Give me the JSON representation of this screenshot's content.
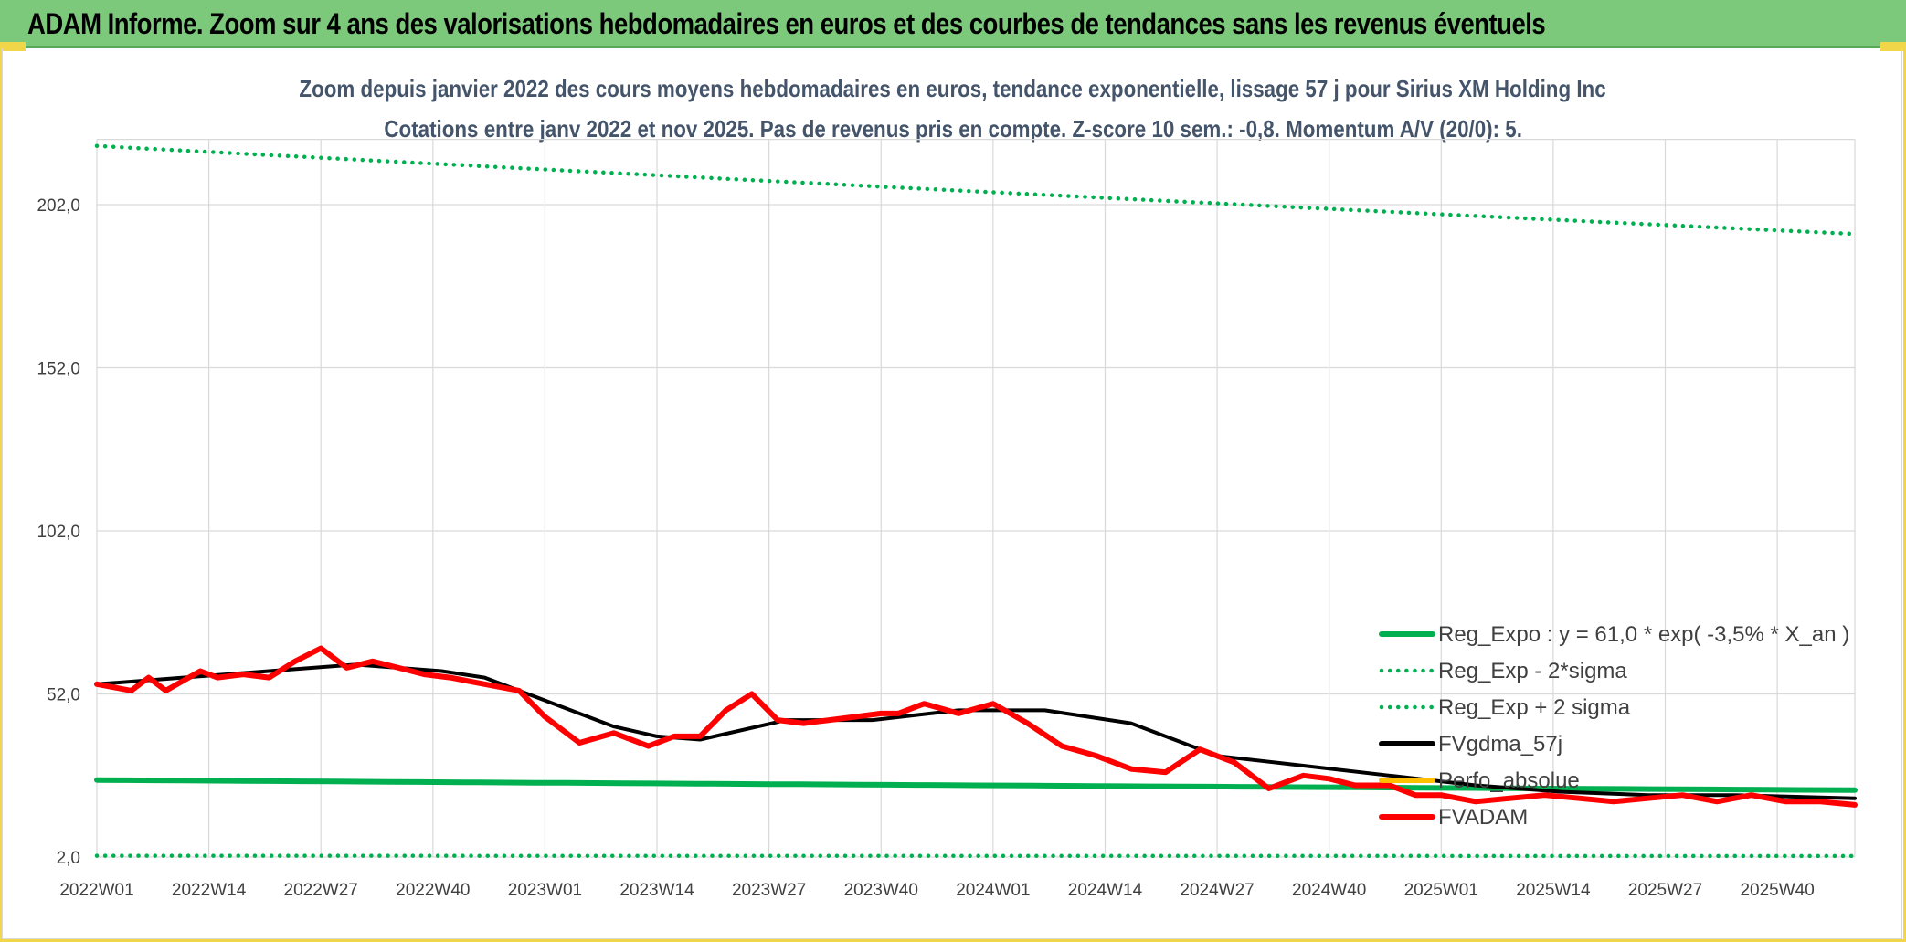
{
  "banner": {
    "title": "ADAM Informe. Zoom sur 4 ans des valorisations hebdomadaires en euros et des courbes de tendances sans les revenus éventuels"
  },
  "chart_data": {
    "type": "line",
    "title": "Zoom depuis janvier 2022 des cours moyens hebdomadaires en euros, tendance exponentielle, lissage 57 j pour Sirius XM Holding Inc",
    "subtitle": "Cotations entre janv 2022 et nov 2025. Pas de revenus pris en compte. Z-score 10 sem.: -0,8. Momentum A/V (20/0): 5.",
    "ylim": [
      2,
      222
    ],
    "yticks": [
      "2,0",
      "52,0",
      "102,0",
      "152,0",
      "202,0"
    ],
    "ytick_values": [
      2,
      52,
      102,
      152,
      202
    ],
    "xticks": [
      "2022W01",
      "2022W14",
      "2022W27",
      "2022W40",
      "2023W01",
      "2023W14",
      "2023W27",
      "2023W40",
      "2024W01",
      "2024W14",
      "2024W27",
      "2024W40",
      "2025W01",
      "2025W14",
      "2025W27",
      "2025W40"
    ],
    "n_weeks": 205,
    "legend": [
      {
        "label": "Reg_Expo : y = 61,0 * exp( -3,5% *  X_an )",
        "color": "#00b050",
        "style": "solid"
      },
      {
        "label": "Reg_Exp - 2*sigma",
        "color": "#00b050",
        "style": "dotted"
      },
      {
        "label": "Reg_Exp + 2 sigma",
        "color": "#00b050",
        "style": "dotted"
      },
      {
        "label": "FVgdma_57j",
        "color": "#000000",
        "style": "solid"
      },
      {
        "label": "Perfo_absolue",
        "color": "#ffc000",
        "style": "solid"
      },
      {
        "label": "FVADAM",
        "color": "#ff0000",
        "style": "solid"
      }
    ],
    "series": [
      {
        "name": "Reg_Expo",
        "color": "#00b050",
        "style": "solid",
        "x": [
          0,
          204
        ],
        "y": [
          25.6,
          22.5
        ]
      },
      {
        "name": "Reg_Exp - 2*sigma",
        "color": "#00b050",
        "style": "dotted",
        "x": [
          0,
          204
        ],
        "y": [
          2.4,
          2.3
        ]
      },
      {
        "name": "Reg_Exp + 2 sigma",
        "color": "#00b050",
        "style": "dotted",
        "x": [
          0,
          204
        ],
        "y": [
          220,
          193
        ]
      },
      {
        "name": "FVgdma_57j",
        "color": "#000000",
        "style": "solid",
        "x": [
          0,
          10,
          20,
          30,
          40,
          45,
          50,
          60,
          65,
          70,
          80,
          90,
          100,
          110,
          120,
          130,
          140,
          150,
          160,
          170,
          180,
          190,
          204
        ],
        "y": [
          55,
          57,
          59,
          61,
          59,
          57,
          52,
          42,
          39,
          38,
          44,
          44,
          47,
          47,
          43,
          33,
          30,
          27,
          24,
          22,
          21,
          21,
          20
        ]
      },
      {
        "name": "FVADAM",
        "color": "#ff0000",
        "style": "solid",
        "x": [
          0,
          4,
          6,
          8,
          10,
          12,
          14,
          17,
          20,
          23,
          26,
          29,
          32,
          35,
          38,
          41,
          45,
          49,
          52,
          56,
          60,
          64,
          67,
          70,
          73,
          76,
          79,
          82,
          85,
          88,
          91,
          93,
          96,
          100,
          104,
          108,
          112,
          116,
          120,
          124,
          128,
          132,
          136,
          140,
          143,
          146,
          150,
          153,
          156,
          160,
          164,
          168,
          172,
          176,
          180,
          184,
          188,
          192,
          196,
          200,
          204
        ],
        "y": [
          55,
          53,
          57,
          53,
          56,
          59,
          57,
          58,
          57,
          62,
          66,
          60,
          62,
          60,
          58,
          57,
          55,
          53,
          45,
          37,
          40,
          36,
          39,
          39,
          47,
          52,
          44,
          43,
          44,
          45,
          46,
          46,
          49,
          46,
          49,
          43,
          36,
          33,
          29,
          28,
          35,
          31,
          23,
          27,
          26,
          24,
          24,
          21,
          21,
          19,
          20,
          21,
          20,
          19,
          20,
          21,
          19,
          21,
          19,
          19,
          18
        ]
      }
    ]
  }
}
